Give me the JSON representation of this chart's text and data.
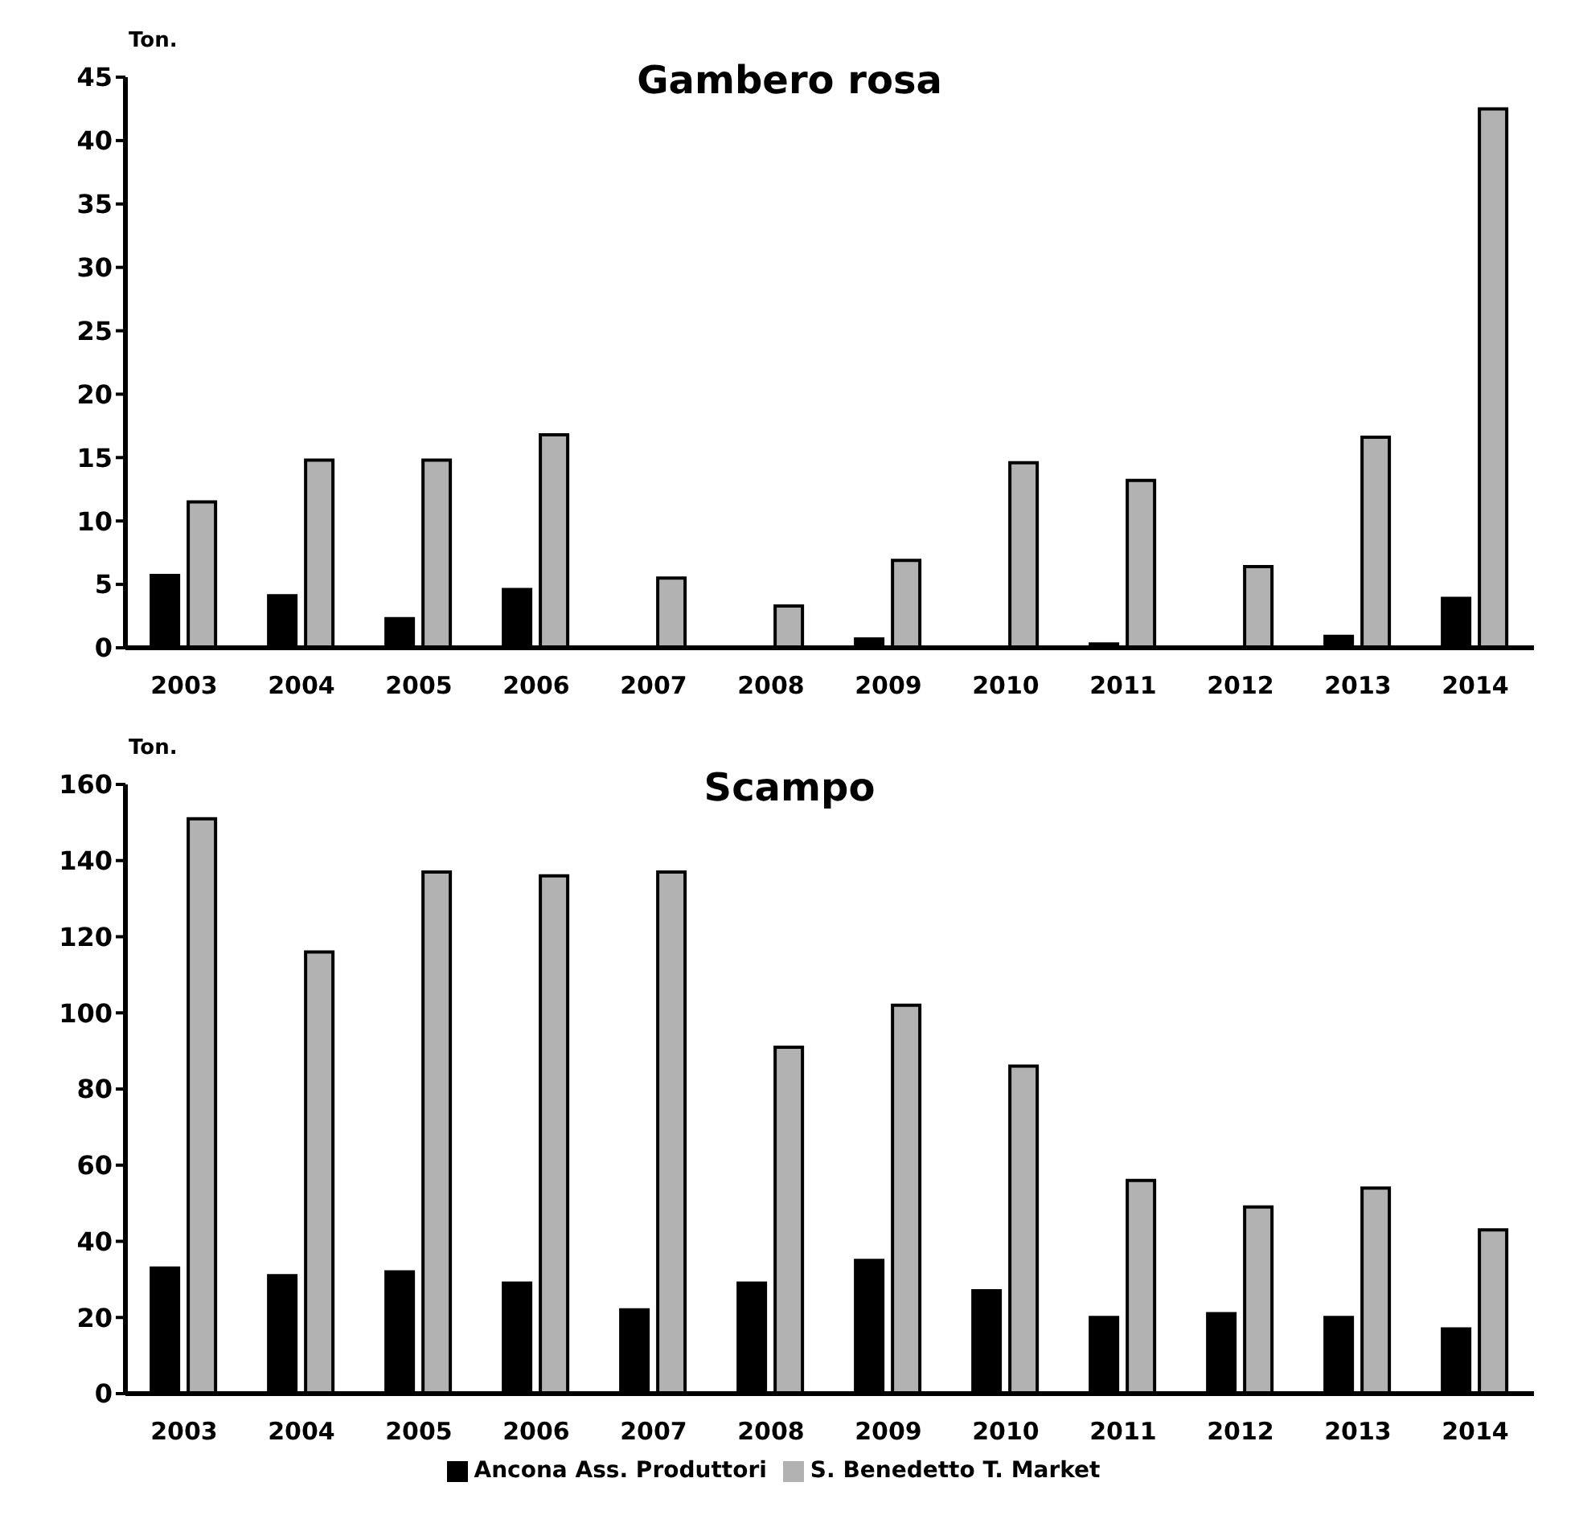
{
  "chart_data": [
    {
      "type": "bar",
      "title": "Gambero rosa",
      "ylabel": "Ton.",
      "categories": [
        "2003",
        "2004",
        "2005",
        "2006",
        "2007",
        "2008",
        "2009",
        "2010",
        "2011",
        "2012",
        "2013",
        "2014"
      ],
      "series": [
        {
          "color": "#000000",
          "values": [
            5.7,
            4.1,
            2.3,
            4.6,
            0,
            0,
            0.7,
            0,
            0.3,
            0,
            0.9,
            3.9
          ]
        },
        {
          "color": "#b2b2b2",
          "values": [
            11.5,
            14.8,
            14.8,
            16.8,
            5.5,
            3.3,
            6.9,
            14.6,
            13.2,
            6.4,
            16.6,
            42.5
          ]
        }
      ],
      "ylim": [
        0,
        45
      ],
      "yticks": [
        0,
        5,
        10,
        15,
        20,
        25,
        30,
        35,
        40,
        45
      ],
      "grid": false,
      "legend": false
    },
    {
      "type": "bar",
      "title": "Scampo",
      "ylabel": "Ton.",
      "categories": [
        "2003",
        "2004",
        "2005",
        "2006",
        "2007",
        "2008",
        "2009",
        "2010",
        "2011",
        "2012",
        "2013",
        "2014"
      ],
      "series": [
        {
          "name": "Ancona Ass. Produttori",
          "color": "#000000",
          "values": [
            33,
            31,
            32,
            29,
            22,
            29,
            35,
            27,
            20,
            21,
            20,
            17
          ]
        },
        {
          "name": "S. Benedetto T.  Market",
          "color": "#b2b2b2",
          "values": [
            151,
            116,
            137,
            136,
            137,
            91,
            102,
            86,
            56,
            49,
            54,
            43
          ]
        }
      ],
      "ylim": [
        0,
        160
      ],
      "yticks": [
        0,
        20,
        40,
        60,
        80,
        100,
        120,
        140,
        160
      ],
      "grid": false,
      "legend": "bottom"
    }
  ]
}
